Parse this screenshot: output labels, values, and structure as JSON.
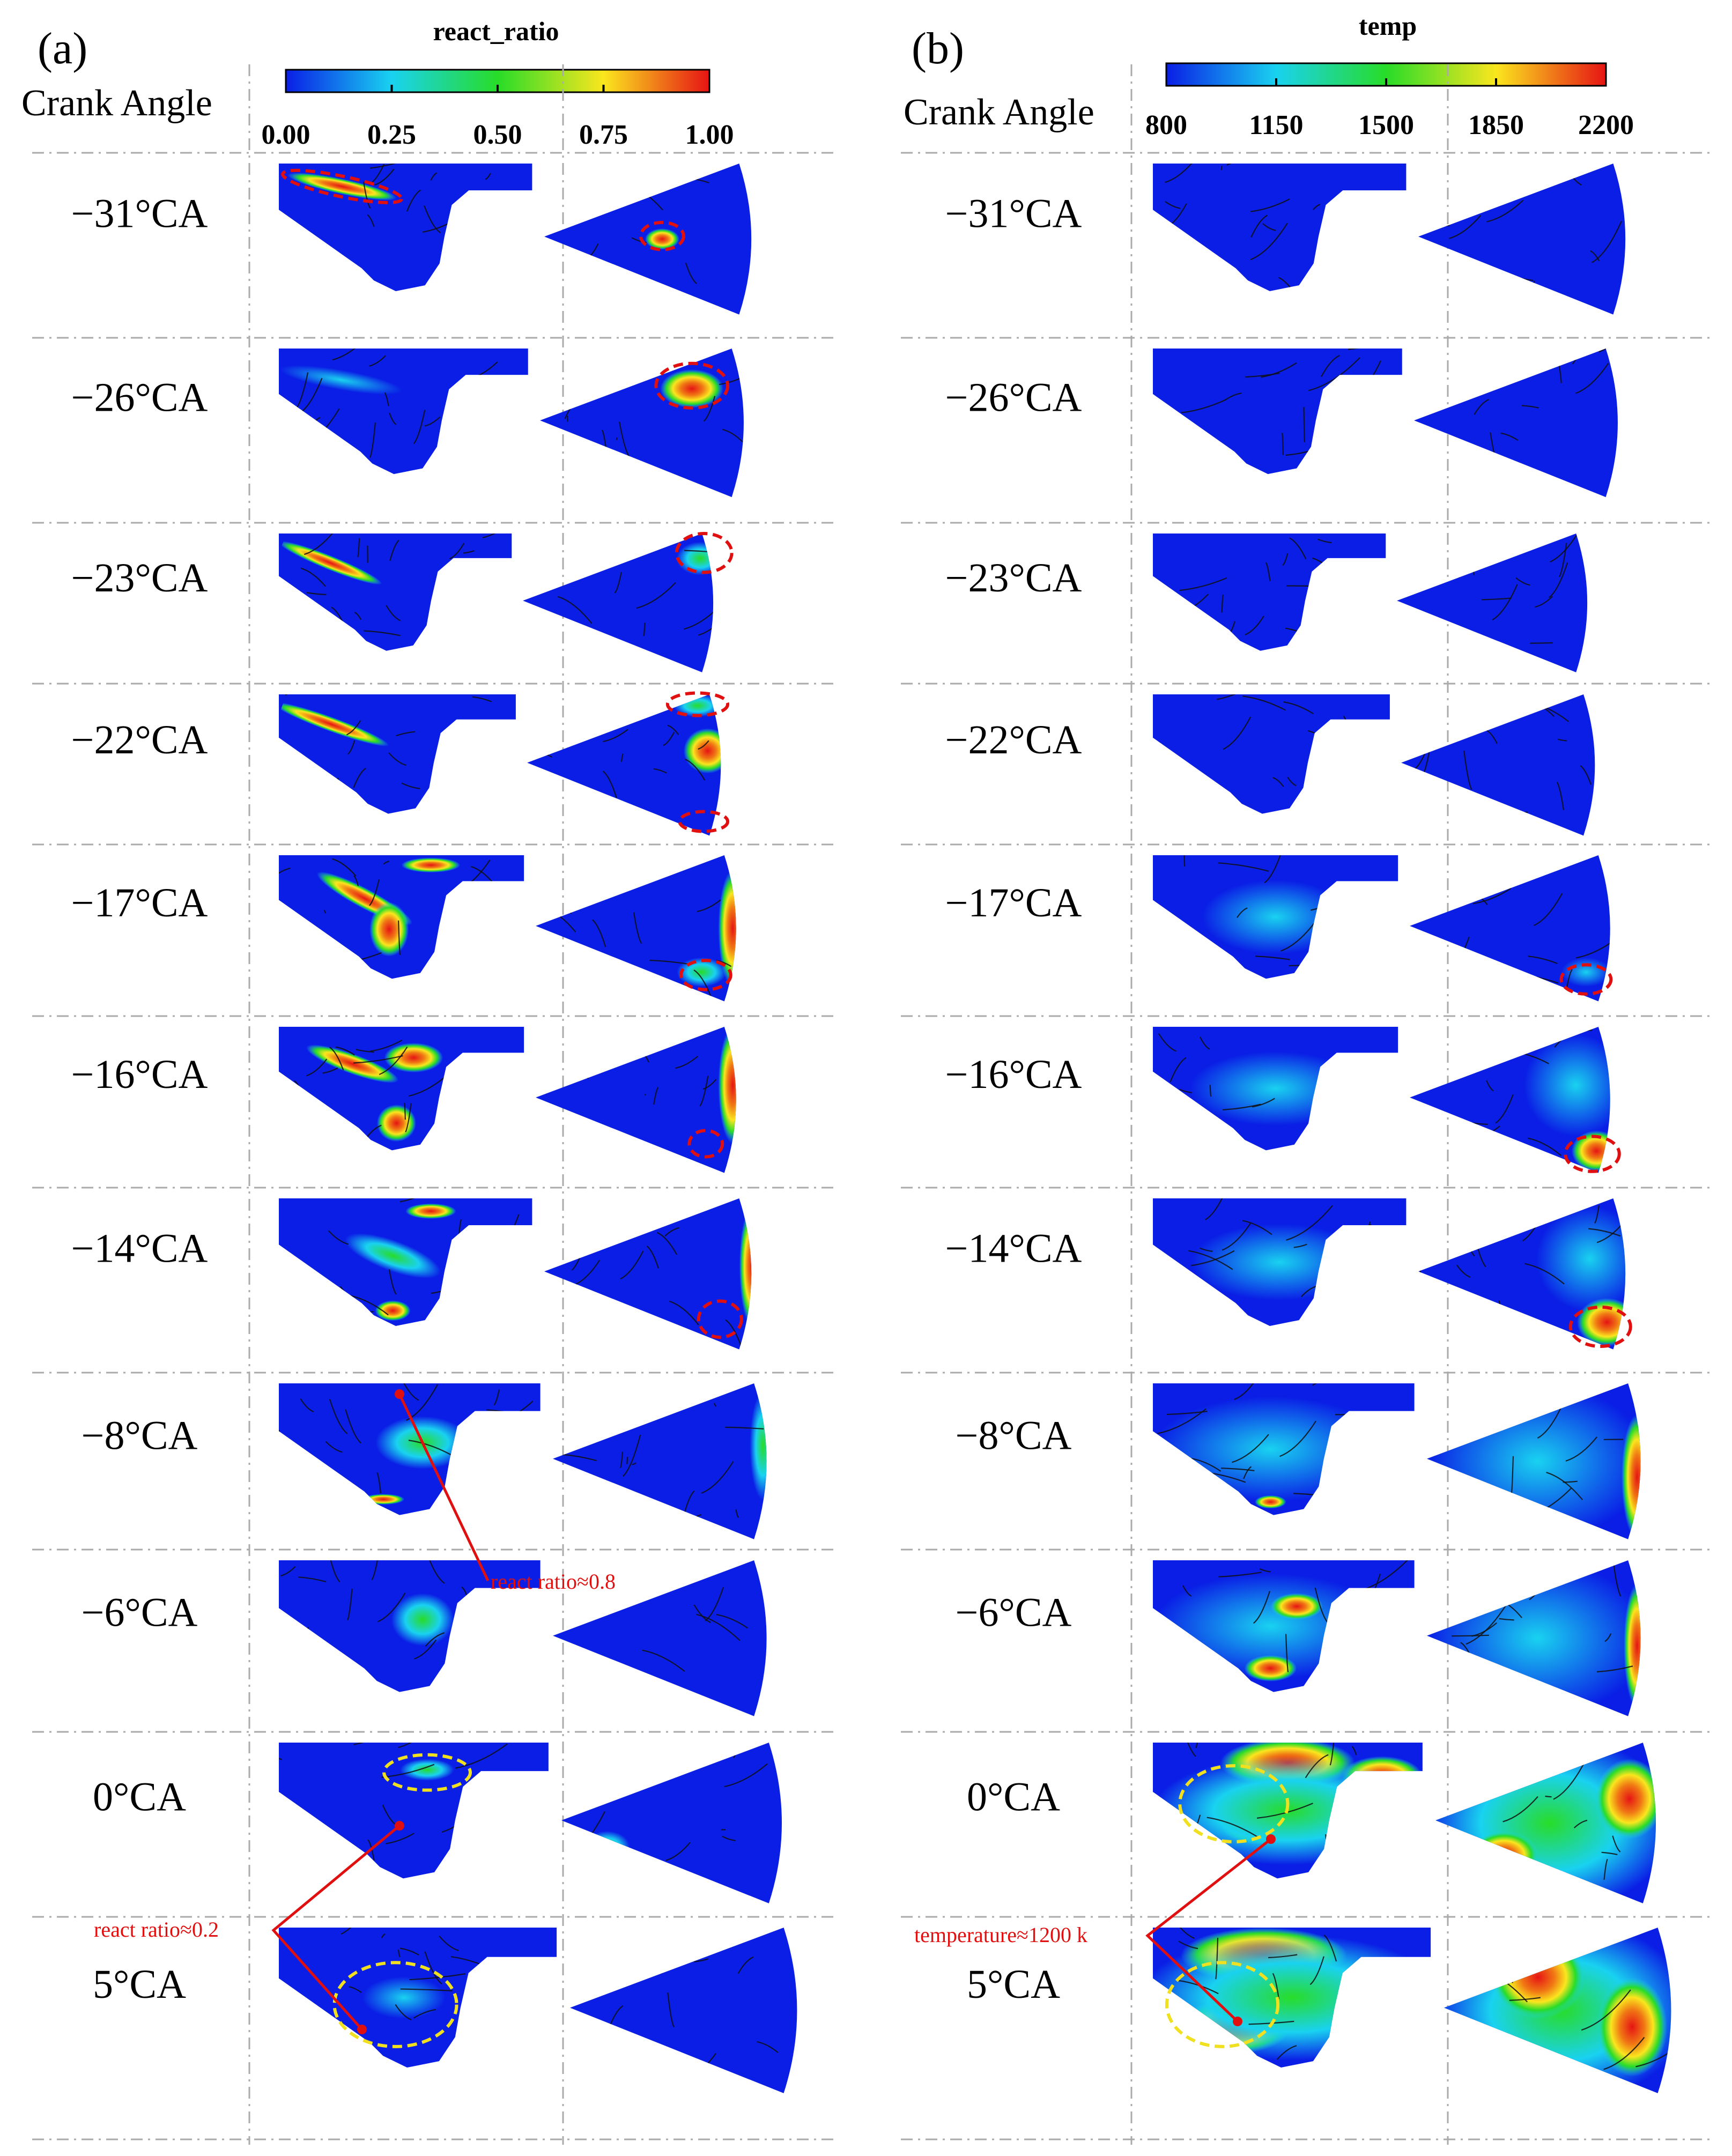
{
  "panel_a": {
    "letter": "(a)",
    "header": "Crank Angle",
    "colorbar": {
      "title": "react_ratio",
      "ticks": [
        "0.00",
        "0.25",
        "0.50",
        "0.75",
        "1.00"
      ],
      "range": [
        0,
        1
      ]
    }
  },
  "panel_b": {
    "letter": "(b)",
    "header": "Crank Angle",
    "colorbar": {
      "title": "temp",
      "ticks": [
        "800",
        "1150",
        "1500",
        "1850",
        "2200"
      ],
      "range": [
        800,
        2200
      ]
    }
  },
  "crank_angles": [
    "−31°CA",
    "−26°CA",
    "−23°CA",
    "−22°CA",
    "−17°CA",
    "−16°CA",
    "−14°CA",
    "−8°CA",
    "−6°CA",
    "0°CA",
    "5°CA"
  ],
  "annotations": {
    "react_high": "react ratio≈0.8",
    "react_low": "react ratio≈0.2",
    "temperature": "temperature≈1200 k"
  },
  "colors": {
    "jet_low": "#0a1ee6",
    "jet_cyan": "#19d2f0",
    "jet_green": "#28dc28",
    "jet_yellow": "#fae61e",
    "jet_red": "#e61414",
    "marker_red": "#e01010",
    "marker_yellow": "#f0e020",
    "divider": "#aaaaaa"
  },
  "chart_data": [
    {
      "type": "heatmap",
      "title": "react_ratio",
      "x": [
        "−31°CA",
        "−26°CA",
        "−23°CA",
        "−22°CA",
        "−17°CA",
        "−16°CA",
        "−14°CA",
        "−8°CA",
        "−6°CA",
        "0°CA",
        "5°CA"
      ],
      "series": [
        {
          "values": [
            0.6,
            1.0,
            0.9,
            1.0,
            1.0,
            1.0,
            1.0,
            0.8,
            0.5,
            0.2,
            0.2
          ]
        }
      ],
      "ylim": [
        0,
        1
      ]
    },
    {
      "type": "heatmap",
      "title": "temp",
      "x": [
        "−31°CA",
        "−26°CA",
        "−23°CA",
        "−22°CA",
        "−17°CA",
        "−16°CA",
        "−14°CA",
        "−8°CA",
        "−6°CA",
        "0°CA",
        "5°CA"
      ],
      "series": [
        {
          "values": [
            800,
            800,
            800,
            800,
            1200,
            2000,
            2000,
            2000,
            2100,
            2200,
            2200
          ]
        }
      ],
      "ylim": [
        800,
        2200
      ]
    }
  ]
}
